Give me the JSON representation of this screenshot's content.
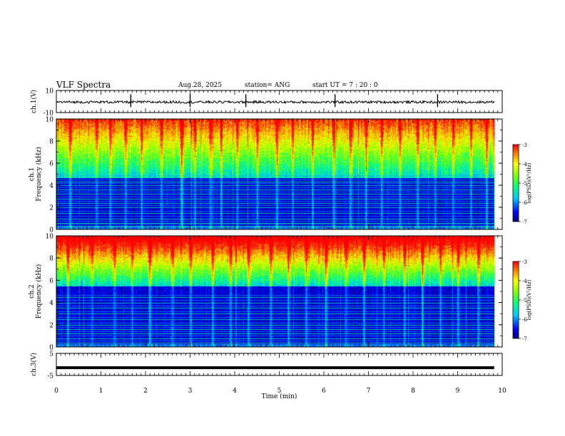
{
  "header": {
    "title": "VLF Spectra",
    "date": "Aug.28, 2025",
    "station": "station= ANG",
    "start": "start  UT =   7 : 20 : 0"
  },
  "chart_data": [
    {
      "type": "line",
      "panel": "ch1-waveform",
      "ylabel": "ch.1(V)",
      "ylim": [
        -10,
        10
      ],
      "yticks": [
        "10",
        "-10"
      ],
      "description_values": {
        "baseline": -0.5,
        "spike_times_min": [
          1.67,
          3.0,
          4.25,
          6.25,
          8.55
        ]
      },
      "series": [
        {
          "values": [
            -0.5
          ]
        }
      ]
    },
    {
      "type": "heatmap",
      "panel": "ch1-spectrogram",
      "ylabel": "ch.1\nFrequency  (kHz)",
      "ylabel_lines": [
        "ch.1",
        "Frequency  (kHz)"
      ],
      "ylim": [
        0,
        10
      ],
      "yticks": [
        "0",
        "2",
        "4",
        "6",
        "8",
        "10"
      ],
      "colorbar": {
        "label": "log(PSD)(V²/Hz)",
        "ticks": [
          "-3",
          "-4",
          "-5",
          "-6",
          "-7"
        ],
        "range": [
          -7,
          -3
        ]
      },
      "noise_floor_khz": 4.7,
      "hum_lines_khz": [
        0.3,
        0.6,
        1.0,
        1.5,
        2.0,
        2.4,
        2.8,
        3.2,
        3.6,
        4.0,
        4.3,
        4.7
      ],
      "sferic_times_min": [
        0.3,
        0.9,
        1.2,
        1.55,
        1.9,
        2.35,
        2.8,
        3.1,
        3.45,
        3.7,
        4.05,
        4.5,
        4.95,
        5.3,
        5.75,
        6.2,
        6.6,
        6.95,
        7.3,
        7.7,
        8.1,
        8.5,
        8.9,
        9.3,
        9.65
      ]
    },
    {
      "type": "heatmap",
      "panel": "ch2-spectrogram",
      "ylabel_lines": [
        "ch.2",
        "Frequency  (kHz)"
      ],
      "ylim": [
        0,
        10
      ],
      "yticks": [
        "0",
        "2",
        "4",
        "6",
        "8",
        "10"
      ],
      "colorbar": {
        "label": "log(PSD)(V²/Hz)",
        "ticks": [
          "-3",
          "-4",
          "-5",
          "-6",
          "-7"
        ],
        "range": [
          -7,
          -3
        ]
      },
      "noise_floor_khz": 5.5,
      "hum_lines_khz": [
        0.4,
        0.8,
        1.2,
        1.6,
        2.0,
        2.5,
        3.0,
        3.5,
        4.0,
        4.5
      ],
      "sferic_times_min": [
        0.25,
        0.8,
        1.3,
        1.7,
        2.1,
        2.6,
        3.0,
        3.5,
        3.9,
        4.3,
        4.8,
        5.2,
        5.6,
        6.05,
        6.5,
        6.9,
        7.35,
        7.8,
        8.2,
        8.6,
        9.0,
        9.45
      ]
    },
    {
      "type": "line",
      "panel": "ch3-waveform",
      "ylabel": "ch.3(V)",
      "ylim": [
        -5,
        5
      ],
      "yticks": [
        "5",
        "-5"
      ],
      "series": [
        {
          "values": [
            -1.5
          ]
        }
      ]
    }
  ],
  "xaxis": {
    "label": "Time  (min)",
    "xlim": [
      0,
      10
    ],
    "ticks": [
      "0",
      "1",
      "2",
      "3",
      "4",
      "5",
      "6",
      "7",
      "8",
      "9",
      "10"
    ],
    "data_end_min": 9.82
  },
  "colors": {
    "background": "#ffffff",
    "axis": "#000000",
    "trace": "#000000"
  }
}
